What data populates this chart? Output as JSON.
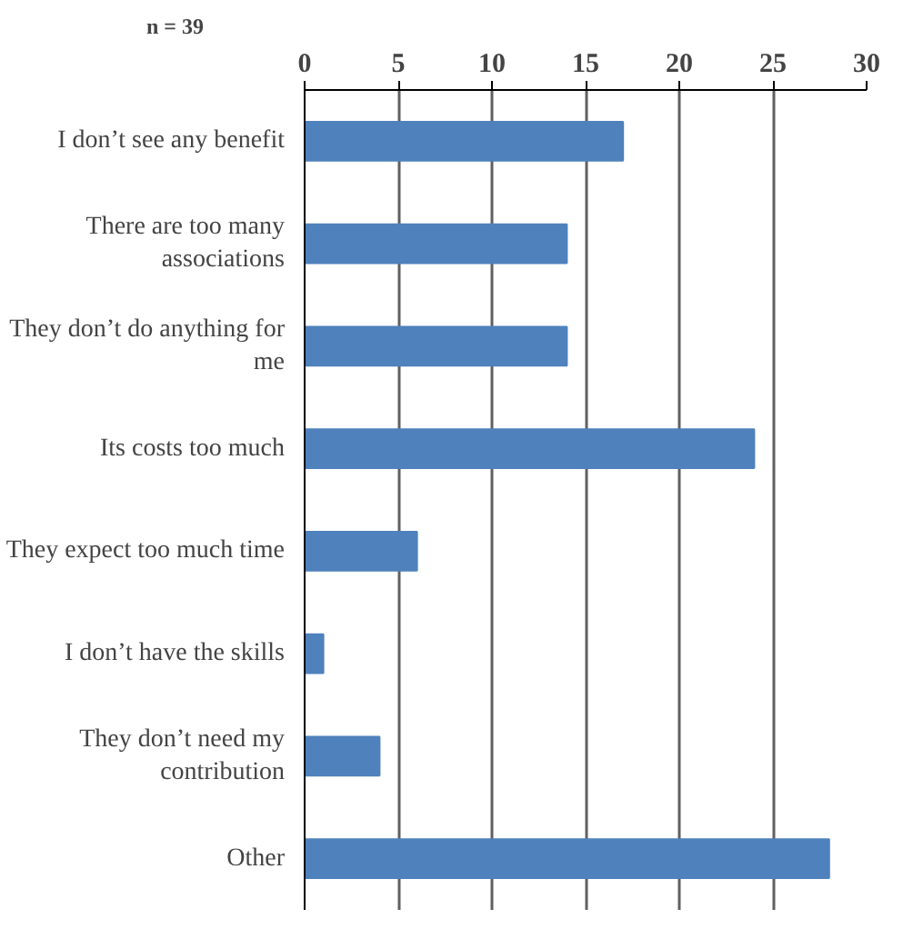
{
  "chart_data": {
    "type": "bar",
    "orientation": "horizontal",
    "categories": [
      "I don’t see any benefit",
      "There are too many associations",
      "They don’t do anything for me",
      "Its costs too much",
      "They expect too much time",
      "I don’t have the skills",
      "They don’t need my contribution",
      "Other"
    ],
    "values": [
      17,
      14,
      14,
      24,
      6,
      1,
      4,
      28
    ],
    "color": "#4f81bd",
    "xlim": [
      0,
      30
    ],
    "xticks": [
      0,
      5,
      10,
      15,
      20,
      25,
      30
    ],
    "grid": "x",
    "annotations": [
      "n = 39"
    ]
  }
}
